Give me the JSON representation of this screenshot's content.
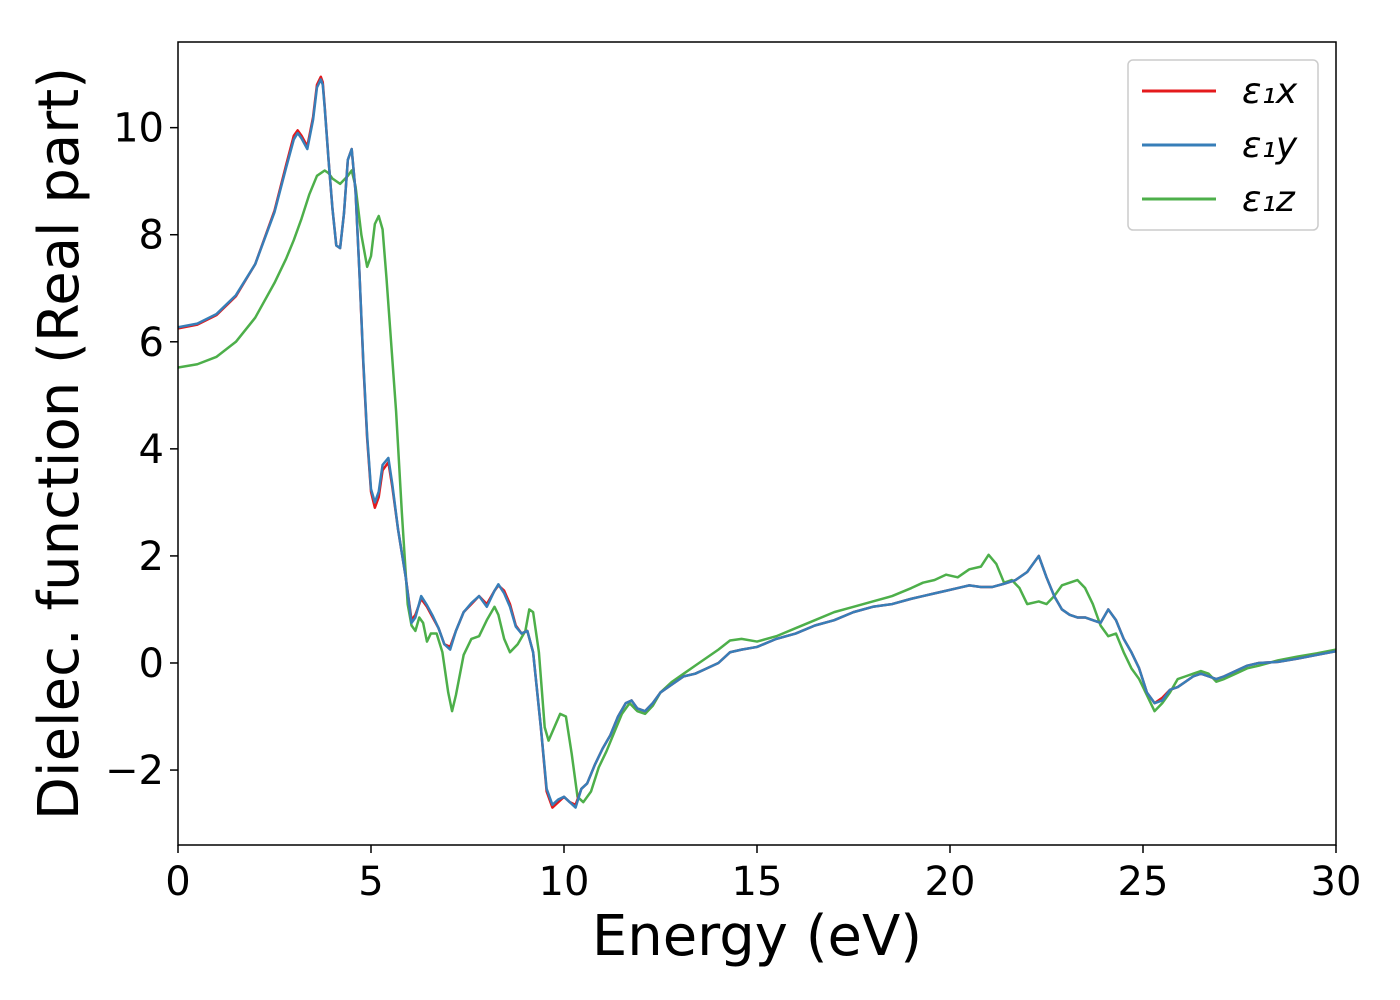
{
  "chart_data": {
    "type": "line",
    "xlabel": "Energy (eV)",
    "ylabel": "Dielec. function (Real part)",
    "xlim": [
      0,
      30
    ],
    "ylim": [
      -3.4,
      11.6
    ],
    "xticks": [
      0,
      5,
      10,
      15,
      20,
      25,
      30
    ],
    "xtick_labels": [
      "0",
      "5",
      "10",
      "15",
      "20",
      "25",
      "30"
    ],
    "yticks": [
      -2,
      0,
      2,
      4,
      6,
      8,
      10
    ],
    "ytick_labels": [
      "−2",
      "0",
      "2",
      "4",
      "6",
      "8",
      "10"
    ],
    "grid": false,
    "legend_position": "top-right",
    "series": [
      {
        "name": "ε₁x",
        "color": "#e41a1c",
        "x": [
          0,
          0.5,
          1.0,
          1.5,
          2.0,
          2.5,
          2.8,
          3.0,
          3.1,
          3.2,
          3.35,
          3.5,
          3.6,
          3.7,
          3.75,
          3.8,
          3.9,
          4.0,
          4.1,
          4.2,
          4.3,
          4.4,
          4.5,
          4.6,
          4.7,
          4.8,
          4.9,
          5.0,
          5.1,
          5.2,
          5.3,
          5.45,
          5.55,
          5.7,
          5.9,
          6.05,
          6.15,
          6.3,
          6.45,
          6.6,
          6.75,
          6.9,
          7.05,
          7.2,
          7.4,
          7.6,
          7.8,
          8.0,
          8.2,
          8.3,
          8.45,
          8.6,
          8.75,
          8.9,
          9.05,
          9.2,
          9.4,
          9.55,
          9.7,
          9.85,
          10.0,
          10.15,
          10.3,
          10.45,
          10.6,
          10.8,
          11.0,
          11.2,
          11.4,
          11.6,
          11.75,
          11.9,
          12.1,
          12.3,
          12.5,
          12.8,
          13.1,
          13.4,
          13.7,
          14.0,
          14.3,
          14.6,
          15.0,
          15.5,
          16.0,
          16.5,
          17.0,
          17.5,
          18.0,
          18.5,
          19.0,
          19.3,
          19.6,
          19.9,
          20.2,
          20.5,
          20.8,
          21.1,
          21.4,
          21.7,
          22.0,
          22.3,
          22.5,
          22.7,
          22.9,
          23.1,
          23.3,
          23.5,
          23.7,
          23.9,
          24.1,
          24.3,
          24.5,
          24.7,
          24.9,
          25.1,
          25.3,
          25.5,
          25.7,
          25.9,
          26.1,
          26.3,
          26.5,
          26.7,
          26.9,
          27.1,
          27.4,
          27.7,
          28.0,
          28.5,
          29.0,
          29.5,
          30.0
        ],
        "y": [
          6.25,
          6.32,
          6.5,
          6.85,
          7.45,
          8.45,
          9.3,
          9.85,
          9.95,
          9.85,
          9.65,
          10.2,
          10.8,
          10.95,
          10.85,
          10.4,
          9.4,
          8.5,
          7.8,
          7.75,
          8.4,
          9.4,
          9.6,
          8.8,
          7.3,
          5.6,
          4.2,
          3.2,
          2.9,
          3.1,
          3.6,
          3.75,
          3.3,
          2.5,
          1.6,
          0.8,
          0.9,
          1.2,
          1.05,
          0.85,
          0.65,
          0.35,
          0.3,
          0.6,
          0.95,
          1.1,
          1.25,
          1.1,
          1.35,
          1.45,
          1.35,
          1.1,
          0.7,
          0.55,
          0.6,
          0.2,
          -1.2,
          -2.4,
          -2.7,
          -2.6,
          -2.5,
          -2.6,
          -2.65,
          -2.35,
          -2.25,
          -1.9,
          -1.6,
          -1.35,
          -1.0,
          -0.75,
          -0.7,
          -0.85,
          -0.9,
          -0.75,
          -0.55,
          -0.4,
          -0.25,
          -0.2,
          -0.1,
          0.0,
          0.2,
          0.25,
          0.3,
          0.45,
          0.55,
          0.7,
          0.8,
          0.95,
          1.05,
          1.1,
          1.2,
          1.25,
          1.3,
          1.35,
          1.4,
          1.45,
          1.42,
          1.42,
          1.48,
          1.55,
          1.7,
          2.0,
          1.6,
          1.25,
          1.0,
          0.9,
          0.85,
          0.85,
          0.8,
          0.75,
          1.0,
          0.8,
          0.45,
          0.2,
          -0.1,
          -0.55,
          -0.75,
          -0.65,
          -0.5,
          -0.45,
          -0.35,
          -0.25,
          -0.2,
          -0.25,
          -0.3,
          -0.25,
          -0.15,
          -0.05,
          0.0,
          0.02,
          0.08,
          0.15,
          0.22
        ]
      },
      {
        "name": "ε₁y",
        "color": "#377eb8",
        "x": [
          0,
          0.5,
          1.0,
          1.5,
          2.0,
          2.5,
          2.8,
          3.0,
          3.1,
          3.2,
          3.35,
          3.5,
          3.6,
          3.7,
          3.75,
          3.8,
          3.9,
          4.0,
          4.1,
          4.2,
          4.3,
          4.4,
          4.5,
          4.6,
          4.7,
          4.8,
          4.9,
          5.0,
          5.1,
          5.2,
          5.3,
          5.45,
          5.55,
          5.7,
          5.9,
          6.05,
          6.15,
          6.3,
          6.45,
          6.6,
          6.75,
          6.9,
          7.05,
          7.2,
          7.4,
          7.6,
          7.8,
          8.0,
          8.2,
          8.3,
          8.45,
          8.6,
          8.75,
          8.9,
          9.05,
          9.2,
          9.4,
          9.55,
          9.7,
          9.85,
          10.0,
          10.15,
          10.3,
          10.45,
          10.6,
          10.8,
          11.0,
          11.2,
          11.4,
          11.6,
          11.75,
          11.9,
          12.1,
          12.3,
          12.5,
          12.8,
          13.1,
          13.4,
          13.7,
          14.0,
          14.3,
          14.6,
          15.0,
          15.5,
          16.0,
          16.5,
          17.0,
          17.5,
          18.0,
          18.5,
          19.0,
          19.3,
          19.6,
          19.9,
          20.2,
          20.5,
          20.8,
          21.1,
          21.4,
          21.7,
          22.0,
          22.3,
          22.5,
          22.7,
          22.9,
          23.1,
          23.3,
          23.5,
          23.7,
          23.9,
          24.1,
          24.3,
          24.5,
          24.7,
          24.9,
          25.1,
          25.3,
          25.5,
          25.7,
          25.9,
          26.1,
          26.3,
          26.5,
          26.7,
          26.9,
          27.1,
          27.4,
          27.7,
          28.0,
          28.5,
          29.0,
          29.5,
          30.0
        ],
        "y": [
          6.27,
          6.34,
          6.52,
          6.87,
          7.45,
          8.42,
          9.25,
          9.78,
          9.9,
          9.8,
          9.6,
          10.15,
          10.75,
          10.9,
          10.8,
          10.38,
          9.4,
          8.5,
          7.8,
          7.75,
          8.4,
          9.4,
          9.6,
          8.8,
          7.3,
          5.65,
          4.25,
          3.25,
          3.0,
          3.2,
          3.7,
          3.83,
          3.35,
          2.5,
          1.6,
          0.75,
          0.85,
          1.25,
          1.08,
          0.88,
          0.65,
          0.35,
          0.25,
          0.6,
          0.95,
          1.12,
          1.25,
          1.05,
          1.35,
          1.47,
          1.3,
          1.05,
          0.68,
          0.55,
          0.6,
          0.2,
          -1.2,
          -2.35,
          -2.65,
          -2.55,
          -2.5,
          -2.6,
          -2.7,
          -2.35,
          -2.25,
          -1.9,
          -1.6,
          -1.35,
          -1.0,
          -0.75,
          -0.7,
          -0.85,
          -0.9,
          -0.75,
          -0.55,
          -0.4,
          -0.25,
          -0.2,
          -0.1,
          0.0,
          0.2,
          0.25,
          0.3,
          0.45,
          0.55,
          0.7,
          0.8,
          0.95,
          1.05,
          1.1,
          1.2,
          1.25,
          1.3,
          1.35,
          1.4,
          1.45,
          1.42,
          1.42,
          1.48,
          1.55,
          1.7,
          2.0,
          1.6,
          1.25,
          1.0,
          0.9,
          0.85,
          0.85,
          0.8,
          0.75,
          1.0,
          0.8,
          0.45,
          0.2,
          -0.1,
          -0.55,
          -0.75,
          -0.7,
          -0.5,
          -0.45,
          -0.35,
          -0.25,
          -0.2,
          -0.25,
          -0.3,
          -0.25,
          -0.15,
          -0.05,
          0.0,
          0.02,
          0.08,
          0.15,
          0.22
        ]
      },
      {
        "name": "ε₁z",
        "color": "#4daf4a",
        "x": [
          0,
          0.5,
          1.0,
          1.5,
          2.0,
          2.5,
          2.8,
          3.0,
          3.2,
          3.4,
          3.6,
          3.8,
          3.9,
          4.0,
          4.2,
          4.4,
          4.5,
          4.6,
          4.75,
          4.9,
          5.0,
          5.1,
          5.2,
          5.3,
          5.4,
          5.5,
          5.65,
          5.8,
          5.95,
          6.05,
          6.15,
          6.25,
          6.35,
          6.45,
          6.55,
          6.7,
          6.85,
          7.0,
          7.1,
          7.2,
          7.4,
          7.6,
          7.8,
          8.0,
          8.2,
          8.3,
          8.45,
          8.6,
          8.8,
          9.0,
          9.1,
          9.2,
          9.35,
          9.5,
          9.6,
          9.75,
          9.9,
          10.05,
          10.2,
          10.35,
          10.5,
          10.7,
          10.9,
          11.1,
          11.3,
          11.5,
          11.7,
          11.9,
          12.1,
          12.3,
          12.5,
          12.8,
          13.1,
          13.4,
          13.7,
          14.0,
          14.3,
          14.6,
          15.0,
          15.5,
          16.0,
          16.5,
          17.0,
          17.5,
          18.0,
          18.5,
          19.0,
          19.3,
          19.6,
          19.9,
          20.2,
          20.5,
          20.8,
          21.0,
          21.2,
          21.4,
          21.6,
          21.8,
          22.0,
          22.3,
          22.5,
          22.7,
          22.9,
          23.1,
          23.3,
          23.5,
          23.7,
          23.9,
          24.1,
          24.3,
          24.5,
          24.7,
          24.9,
          25.1,
          25.3,
          25.5,
          25.7,
          25.9,
          26.1,
          26.3,
          26.5,
          26.7,
          26.9,
          27.1,
          27.4,
          27.7,
          28.0,
          28.5,
          29.0,
          29.5,
          30.0
        ],
        "y": [
          5.52,
          5.58,
          5.72,
          6.0,
          6.45,
          7.1,
          7.55,
          7.9,
          8.3,
          8.75,
          9.1,
          9.2,
          9.15,
          9.05,
          8.95,
          9.1,
          9.2,
          8.9,
          8.0,
          7.4,
          7.6,
          8.2,
          8.35,
          8.1,
          7.2,
          6.2,
          4.7,
          2.8,
          1.1,
          0.7,
          0.6,
          0.85,
          0.75,
          0.4,
          0.55,
          0.55,
          0.2,
          -0.55,
          -0.9,
          -0.6,
          0.15,
          0.45,
          0.5,
          0.8,
          1.05,
          0.9,
          0.45,
          0.2,
          0.35,
          0.6,
          1.0,
          0.95,
          0.2,
          -1.2,
          -1.45,
          -1.2,
          -0.95,
          -1.0,
          -1.7,
          -2.5,
          -2.6,
          -2.4,
          -1.95,
          -1.65,
          -1.3,
          -0.95,
          -0.75,
          -0.9,
          -0.95,
          -0.8,
          -0.55,
          -0.35,
          -0.2,
          -0.05,
          0.1,
          0.25,
          0.42,
          0.45,
          0.4,
          0.5,
          0.65,
          0.8,
          0.95,
          1.05,
          1.15,
          1.25,
          1.4,
          1.5,
          1.55,
          1.65,
          1.6,
          1.75,
          1.8,
          2.02,
          1.85,
          1.5,
          1.55,
          1.4,
          1.1,
          1.15,
          1.1,
          1.25,
          1.45,
          1.5,
          1.55,
          1.4,
          1.1,
          0.7,
          0.5,
          0.55,
          0.2,
          -0.1,
          -0.3,
          -0.6,
          -0.9,
          -0.75,
          -0.55,
          -0.3,
          -0.25,
          -0.2,
          -0.15,
          -0.2,
          -0.35,
          -0.3,
          -0.2,
          -0.1,
          -0.05,
          0.05,
          0.12,
          0.18,
          0.25
        ]
      }
    ]
  }
}
